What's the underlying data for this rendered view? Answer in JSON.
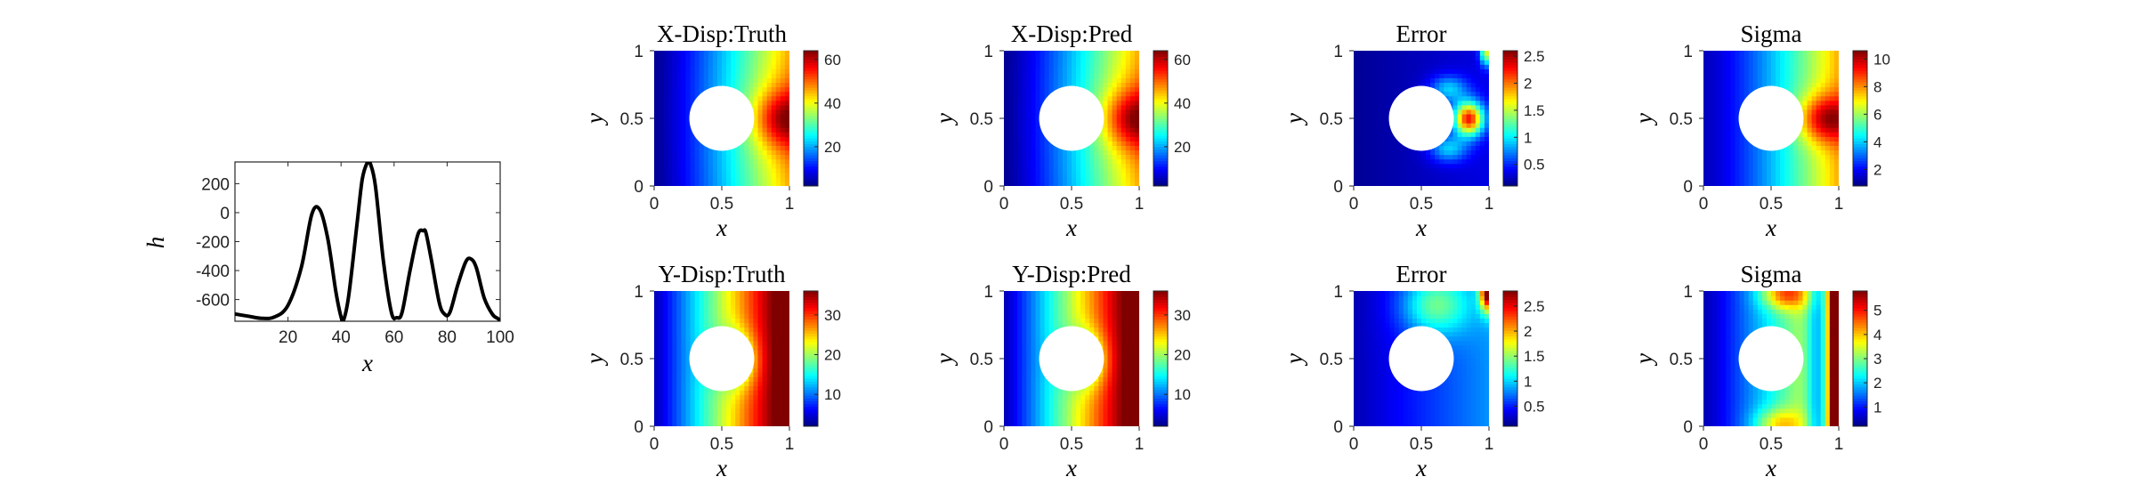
{
  "chart_data": [
    {
      "type": "line",
      "xlabel": "x",
      "ylabel": "h",
      "xlim": [
        0,
        100
      ],
      "ylim": [
        -750,
        350
      ],
      "xticks": [
        "20",
        "40",
        "60",
        "80",
        "100"
      ],
      "yticks": [
        "200",
        "0",
        "-200",
        "-400",
        "-600"
      ],
      "series": [
        {
          "color": "#000000",
          "x": [
            0,
            5,
            10,
            15,
            20,
            25,
            29,
            32,
            35,
            38,
            40,
            41,
            43,
            46,
            48,
            50,
            51,
            53,
            56,
            59,
            61,
            63,
            66,
            69,
            71,
            72,
            74,
            77,
            79,
            81,
            84,
            87,
            89,
            91,
            94,
            97,
            99,
            100
          ],
          "y": [
            -700,
            -715,
            -730,
            -720,
            -640,
            -380,
            -10,
            20,
            -180,
            -540,
            -720,
            -740,
            -560,
            -80,
            230,
            350,
            340,
            180,
            -340,
            -690,
            -725,
            -690,
            -400,
            -150,
            -125,
            -140,
            -320,
            -620,
            -700,
            -690,
            -500,
            -340,
            -320,
            -380,
            -590,
            -700,
            -730,
            -740
          ]
        }
      ]
    },
    {
      "type": "heatmap",
      "title": "X-Disp:Truth",
      "xlabel": "x",
      "ylabel": "y",
      "xticks": [
        "0",
        "0.5",
        "1"
      ],
      "yticks": [
        "0",
        "0.5",
        "1"
      ],
      "colorbar": {
        "range": [
          2,
          64
        ],
        "ticks": [
          20,
          40,
          60
        ],
        "labels": [
          "20",
          "40",
          "60"
        ]
      },
      "field": {
        "kind": "xdisp",
        "amp": 1,
        "scale": 1
      }
    },
    {
      "type": "heatmap",
      "title": "X-Disp:Pred",
      "xlabel": "x",
      "ylabel": "y",
      "xticks": [
        "0",
        "0.5",
        "1"
      ],
      "yticks": [
        "0",
        "0.5",
        "1"
      ],
      "colorbar": {
        "range": [
          2,
          64
        ],
        "ticks": [
          20,
          40,
          60
        ],
        "labels": [
          "20",
          "40",
          "60"
        ]
      },
      "field": {
        "kind": "xdisp",
        "amp": 1,
        "scale": 1
      }
    },
    {
      "type": "heatmap",
      "title": "Error",
      "xlabel": "x",
      "ylabel": "y",
      "xticks": [
        "0",
        "0.5",
        "1"
      ],
      "yticks": [
        "0",
        "0.5",
        "1"
      ],
      "colorbar": {
        "range": [
          0.1,
          2.6
        ],
        "ticks": [
          0.5,
          1,
          1.5,
          2,
          2.5
        ],
        "labels": [
          "0.5",
          "1",
          "1.5",
          "2",
          "2.5"
        ]
      },
      "field": {
        "kind": "xerr",
        "amp": 1,
        "scale": 1
      }
    },
    {
      "type": "heatmap",
      "title": "Sigma",
      "xlabel": "x",
      "ylabel": "y",
      "xticks": [
        "0",
        "0.5",
        "1"
      ],
      "yticks": [
        "0",
        "0.5",
        "1"
      ],
      "colorbar": {
        "range": [
          0.8,
          10.6
        ],
        "ticks": [
          2,
          4,
          6,
          8,
          10
        ],
        "labels": [
          "2",
          "4",
          "6",
          "8",
          "10"
        ]
      },
      "field": {
        "kind": "xsig",
        "amp": 1,
        "scale": 1
      }
    },
    {
      "type": "heatmap",
      "title": "Y-Disp:Truth",
      "xlabel": "x",
      "ylabel": "y",
      "xticks": [
        "0",
        "0.5",
        "1"
      ],
      "yticks": [
        "0",
        "0.5",
        "1"
      ],
      "colorbar": {
        "range": [
          2,
          36
        ],
        "ticks": [
          10,
          20,
          30
        ],
        "labels": [
          "10",
          "20",
          "30"
        ]
      },
      "field": {
        "kind": "ydisp",
        "amp": 1,
        "scale": 1
      }
    },
    {
      "type": "heatmap",
      "title": "Y-Disp:Pred",
      "xlabel": "x",
      "ylabel": "y",
      "xticks": [
        "0",
        "0.5",
        "1"
      ],
      "yticks": [
        "0",
        "0.5",
        "1"
      ],
      "colorbar": {
        "range": [
          2,
          36
        ],
        "ticks": [
          10,
          20,
          30
        ],
        "labels": [
          "10",
          "20",
          "30"
        ]
      },
      "field": {
        "kind": "ydisp",
        "amp": 1,
        "scale": 1
      }
    },
    {
      "type": "heatmap",
      "title": "Error",
      "xlabel": "x",
      "ylabel": "y",
      "xticks": [
        "0",
        "0.5",
        "1"
      ],
      "yticks": [
        "0",
        "0.5",
        "1"
      ],
      "colorbar": {
        "range": [
          0.1,
          2.8
        ],
        "ticks": [
          0.5,
          1,
          1.5,
          2,
          2.5
        ],
        "labels": [
          "0.5",
          "1",
          "1.5",
          "2",
          "2.5"
        ]
      },
      "field": {
        "kind": "yerr",
        "amp": 1,
        "scale": 1
      }
    },
    {
      "type": "heatmap",
      "title": "Sigma",
      "xlabel": "x",
      "ylabel": "y",
      "xticks": [
        "0",
        "0.5",
        "1"
      ],
      "yticks": [
        "0",
        "0.5",
        "1"
      ],
      "colorbar": {
        "range": [
          0.2,
          5.8
        ],
        "ticks": [
          1,
          2,
          3,
          4,
          5
        ],
        "labels": [
          "1",
          "2",
          "3",
          "4",
          "5"
        ]
      },
      "field": {
        "kind": "ysig",
        "amp": 1,
        "scale": 1
      }
    }
  ]
}
